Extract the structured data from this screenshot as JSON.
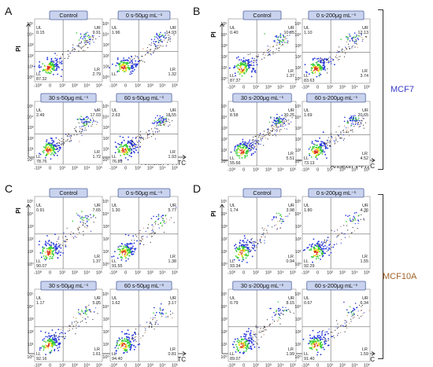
{
  "figure": {
    "panels": [
      {
        "letter": "A",
        "ylabel": "PI",
        "xlabel": "Annexin V-FITC",
        "plots": [
          {
            "title": "Control",
            "ul": "0.15",
            "ur": "9.91",
            "ll": "87.32",
            "lr": "2.79"
          },
          {
            "title": "0 s-50μg mL⁻¹",
            "ul": "1.96",
            "ur": "14.93",
            "ll": "",
            "lr": "1.32"
          },
          {
            "title": "30 s-50μg mL⁻¹",
            "ul": "2.49",
            "ur": "17.03",
            "ll": "78.76",
            "lr": "1.72"
          },
          {
            "title": "60 s-50μg mL⁻¹",
            "ul": "2.63",
            "ur": "18.55",
            "ll": "76.89",
            "lr": "1.93"
          }
        ]
      },
      {
        "letter": "B",
        "ylabel": "PI",
        "xlabel": "Annexin V-FITC",
        "group": "MCF7",
        "plots": [
          {
            "title": "Control",
            "ul": "0.40",
            "ur": "10.85",
            "ll": "87.37",
            "lr": "1.37"
          },
          {
            "title": "0 s-200μg mL⁻¹",
            "ul": "1.10",
            "ur": "12.13",
            "ll": "83.63",
            "lr": "3.74"
          },
          {
            "title": "30 s-200μg mL⁻¹",
            "ul": "8.58",
            "ur": "30.25",
            "ll": "55.66",
            "lr": "5.51"
          },
          {
            "title": "60 s-200μg mL⁻¹",
            "ul": "1.69",
            "ur": "20.65",
            "ll": "73.13",
            "lr": "4.52"
          }
        ]
      },
      {
        "letter": "C",
        "ylabel": "PI",
        "xlabel": "Annexin V-FITC",
        "plots": [
          {
            "title": "Control",
            "ul": "0.91",
            "ur": "7.65",
            "ll": "90.07",
            "lr": "1.37"
          },
          {
            "title": "0 s-50μg mL⁻¹",
            "ul": "1.30",
            "ur": "5.77",
            "ll": "91.55",
            "lr": "1.38"
          },
          {
            "title": "30 s-50μg mL⁻¹",
            "ul": "1.17",
            "ur": "5.05",
            "ll": "92.16",
            "lr": "1.61"
          },
          {
            "title": "60 s-50μg mL⁻¹",
            "ul": "1.62",
            "ur": "3.17",
            "ll": "94.40",
            "lr": "0.81"
          }
        ]
      },
      {
        "letter": "D",
        "ylabel": "PI",
        "xlabel": "Annexin V-FITC",
        "group": "MCF10A",
        "plots": [
          {
            "title": "Control",
            "ul": "1.74",
            "ur": "3.98",
            "ll": "93.34",
            "lr": "0.94"
          },
          {
            "title": "0 s-200μg mL⁻¹",
            "ul": "1.80",
            "ur": "4.36",
            "ll": "92.29",
            "lr": "1.55"
          },
          {
            "title": "30 s-200μg mL⁻¹",
            "ul": "0.79",
            "ur": "8.15",
            "ll": "89.07",
            "lr": "1.99"
          },
          {
            "title": "60 s-200μg mL⁻¹",
            "ul": "0.67",
            "ur": "6.34",
            "ll": "91.40",
            "lr": "1.59"
          }
        ]
      }
    ],
    "quadrant_names": {
      "ul": "UL",
      "ur": "UR",
      "ll": "LL",
      "lr": "LR"
    },
    "y_ticks": [
      "10⁰",
      "10¹",
      "10²",
      "10³",
      "10⁴",
      "10⁵"
    ],
    "x_ticks": [
      "-10⁰",
      "0",
      "10²",
      "10³",
      "10⁴",
      "10⁵"
    ],
    "colors": {
      "title_fill": "#c9d3ee",
      "mcf7": "#3b3bc4",
      "mcf10a": "#a0622a",
      "dot_blue": "#2233dd",
      "dot_green": "#33cc33",
      "dot_yellow": "#e8e020",
      "dot_red": "#dd3322"
    }
  }
}
